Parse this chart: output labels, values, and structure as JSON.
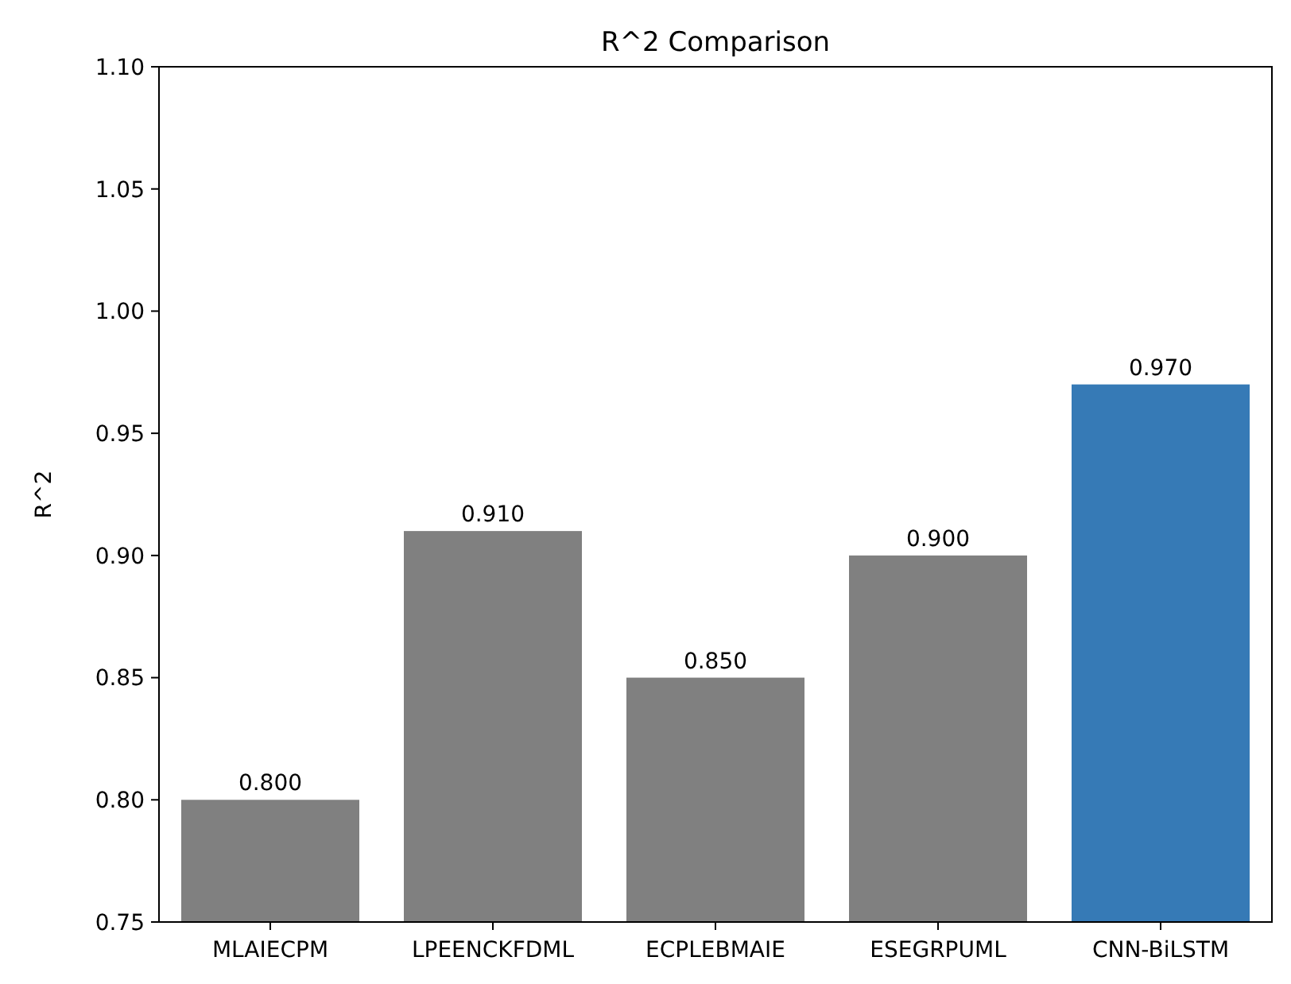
{
  "chart_data": {
    "type": "bar",
    "title": "R^2 Comparison",
    "ylabel": "R^2",
    "categories": [
      "MLAIECPM",
      "LPEENCKFDML",
      "ECPLEBMAIE",
      "ESEGRPUML",
      "CNN-BiLSTM"
    ],
    "values": [
      0.8,
      0.91,
      0.85,
      0.9,
      0.97
    ],
    "colors": [
      "#808080",
      "#808080",
      "#808080",
      "#808080",
      "#367ab6"
    ],
    "value_labels": [
      "0.800",
      "0.910",
      "0.850",
      "0.900",
      "0.970"
    ],
    "ylim": [
      0.75,
      1.1
    ],
    "yticks": [
      {
        "value": 0.75,
        "label": "0.75"
      },
      {
        "value": 0.8,
        "label": "0.80"
      },
      {
        "value": 0.85,
        "label": "0.85"
      },
      {
        "value": 0.9,
        "label": "0.90"
      },
      {
        "value": 0.95,
        "label": "0.95"
      },
      {
        "value": 1.0,
        "label": "1.00"
      },
      {
        "value": 1.05,
        "label": "1.05"
      },
      {
        "value": 1.1,
        "label": "1.10"
      }
    ],
    "grid": false
  }
}
